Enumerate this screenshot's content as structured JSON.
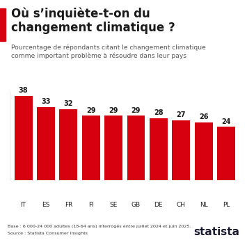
{
  "chart_data": {
    "type": "bar",
    "title": "Où s’inquiète-t-on du\nchangement climatique ?",
    "subtitle": "Pourcentage de répondants citant le changement climatique\ncomme important problème à résoudre dans leur pays",
    "categories": [
      "IT",
      "ES",
      "FR",
      "FI",
      "SE",
      "GB",
      "DE",
      "CH",
      "NL",
      "PL"
    ],
    "values": [
      38,
      33,
      32,
      29,
      29,
      29,
      28,
      27,
      26,
      24
    ],
    "color": "#d7000f",
    "ylim": [
      0,
      40
    ],
    "yticks": [],
    "data_labels": true,
    "tick_labels": "x",
    "grid": false,
    "annotations": [
      "Base : 6 000-24 000 adultes (18-64 ans) interrogés entre juillet 2024 et juin 2025.",
      "Source : Statista Consumer Insights",
      "statista"
    ]
  }
}
